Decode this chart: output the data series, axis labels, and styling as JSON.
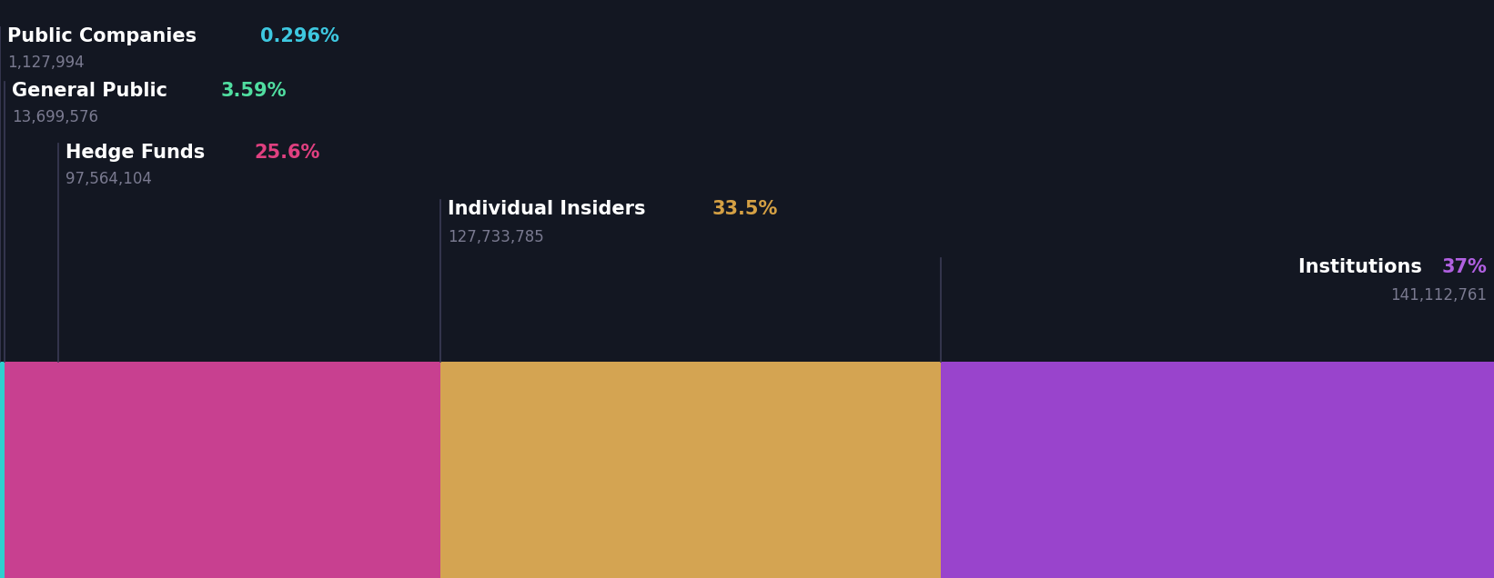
{
  "segments": [
    {
      "label": "Public Companies",
      "pct_str": "0.296%",
      "pct": 0.296,
      "shares": "1,127,994",
      "pct_color": "#3ec8e0",
      "bar_color": "#2ecfcf"
    },
    {
      "label": "General Public",
      "pct_str": "3.59%",
      "pct": 3.59,
      "shares": "13,699,576",
      "pct_color": "#50dda0",
      "bar_color": "#c84090"
    },
    {
      "label": "Hedge Funds",
      "pct_str": "25.6%",
      "pct": 25.6,
      "shares": "97,564,104",
      "pct_color": "#e04080",
      "bar_color": "#c84090"
    },
    {
      "label": "Individual Insiders",
      "pct_str": "33.5%",
      "pct": 33.5,
      "shares": "127,733,785",
      "pct_color": "#d4a044",
      "bar_color": "#d4a452"
    },
    {
      "label": "Institutions",
      "pct_str": "37%",
      "pct": 37.0,
      "shares": "141,112,761",
      "pct_color": "#b060e0",
      "bar_color": "#9944cc"
    }
  ],
  "background_color": "#131722",
  "text_color": "#ffffff",
  "subtext_color": "#7a7a90",
  "line_color": "#3a3a55",
  "label_fontsize": 15,
  "shares_fontsize": 12
}
